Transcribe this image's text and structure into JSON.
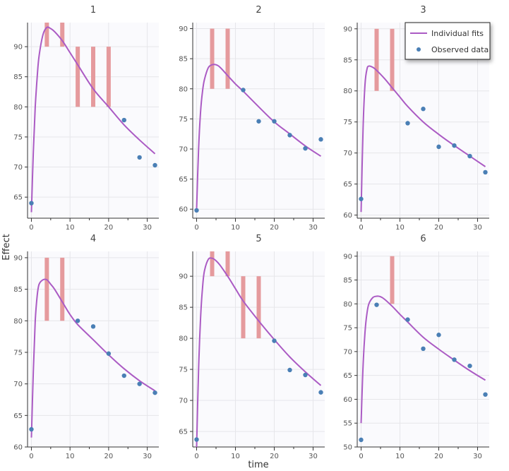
{
  "colors": {
    "fit_line": "#ab5bc4",
    "observed": "#4a7fb5",
    "dose_bar": "#e59a9d",
    "plot_bg": "#fafafd",
    "grid": "#e6e6ea"
  },
  "chart_data": {
    "type": "line",
    "xlabel": "time",
    "ylabel": "Effect",
    "legend": {
      "position": "top-right",
      "entries": [
        {
          "name": "Individual fits",
          "kind": "line"
        },
        {
          "name": "Observed data",
          "kind": "point"
        }
      ]
    },
    "panels": [
      {
        "title": "1",
        "xlim": [
          -1,
          33
        ],
        "ylim": [
          61.5,
          94
        ],
        "xticks": [
          0,
          10,
          20,
          30
        ],
        "yticks": [
          65,
          70,
          75,
          80,
          85,
          90
        ],
        "dose_bars": [
          [
            4,
            90,
            94
          ],
          [
            8,
            90,
            94
          ],
          [
            12,
            80,
            90
          ],
          [
            16,
            80,
            90
          ],
          [
            20,
            80,
            90
          ]
        ],
        "fit": [
          [
            0,
            62.5
          ],
          [
            0.5,
            72.5
          ],
          [
            1,
            80
          ],
          [
            1.5,
            85
          ],
          [
            2,
            88.5
          ],
          [
            3,
            92
          ],
          [
            4,
            93.2
          ],
          [
            5,
            93
          ],
          [
            6,
            92.5
          ],
          [
            8,
            91
          ],
          [
            10,
            89
          ],
          [
            12,
            87
          ],
          [
            16,
            83
          ],
          [
            20,
            80
          ],
          [
            24,
            77
          ],
          [
            28,
            74.5
          ],
          [
            32,
            72.2
          ]
        ],
        "observed": [
          [
            0,
            64
          ],
          [
            24,
            77.8
          ],
          [
            28,
            71.6
          ],
          [
            32,
            70.3
          ]
        ]
      },
      {
        "title": "2",
        "xlim": [
          -1,
          33
        ],
        "ylim": [
          58.5,
          91
        ],
        "xticks": [
          0,
          10,
          20,
          30
        ],
        "yticks": [
          60,
          65,
          70,
          75,
          80,
          85,
          90
        ],
        "dose_bars": [
          [
            4,
            80,
            90
          ],
          [
            8,
            80,
            90
          ]
        ],
        "fit": [
          [
            0,
            60
          ],
          [
            0.5,
            70
          ],
          [
            1,
            76
          ],
          [
            1.5,
            79.5
          ],
          [
            2,
            81.5
          ],
          [
            3,
            83.5
          ],
          [
            4,
            84
          ],
          [
            5,
            84
          ],
          [
            6,
            83.6
          ],
          [
            8,
            82.2
          ],
          [
            10,
            80.8
          ],
          [
            12,
            79.6
          ],
          [
            16,
            77
          ],
          [
            20,
            74.5
          ],
          [
            24,
            72.5
          ],
          [
            28,
            70.5
          ],
          [
            32,
            68.8
          ]
        ],
        "observed": [
          [
            0,
            59.8
          ],
          [
            12,
            79.8
          ],
          [
            16,
            74.6
          ],
          [
            20,
            74.6
          ],
          [
            24,
            72.3
          ],
          [
            28,
            70.1
          ],
          [
            32,
            71.6
          ]
        ]
      },
      {
        "title": "3",
        "xlim": [
          -1,
          33
        ],
        "ylim": [
          59.5,
          91
        ],
        "xticks": [
          0,
          10,
          20,
          30
        ],
        "yticks": [
          60,
          65,
          70,
          75,
          80,
          85,
          90
        ],
        "dose_bars": [
          [
            4,
            80,
            90
          ],
          [
            8,
            80,
            90
          ]
        ],
        "fit": [
          [
            0,
            60.5
          ],
          [
            0.5,
            74
          ],
          [
            1,
            81
          ],
          [
            1.5,
            83.5
          ],
          [
            2,
            84
          ],
          [
            3,
            83.8
          ],
          [
            4,
            83.3
          ],
          [
            6,
            82
          ],
          [
            8,
            80.5
          ],
          [
            10,
            79
          ],
          [
            12,
            77.5
          ],
          [
            16,
            75
          ],
          [
            20,
            73
          ],
          [
            24,
            71.2
          ],
          [
            28,
            69.5
          ],
          [
            32,
            67.8
          ]
        ],
        "observed": [
          [
            0,
            62.6
          ],
          [
            12,
            74.8
          ],
          [
            16,
            77.1
          ],
          [
            20,
            71
          ],
          [
            24,
            71.2
          ],
          [
            28,
            69.5
          ],
          [
            32,
            66.9
          ]
        ]
      },
      {
        "title": "4",
        "xlim": [
          -1,
          33
        ],
        "ylim": [
          60,
          91
        ],
        "xticks": [
          0,
          10,
          20,
          30
        ],
        "yticks": [
          60,
          65,
          70,
          75,
          80,
          85,
          90
        ],
        "dose_bars": [
          [
            4,
            80,
            90
          ],
          [
            8,
            80,
            90
          ]
        ],
        "fit": [
          [
            0,
            61.5
          ],
          [
            0.5,
            72
          ],
          [
            1,
            80
          ],
          [
            1.5,
            84
          ],
          [
            2,
            85.8
          ],
          [
            3,
            86.5
          ],
          [
            4,
            86.5
          ],
          [
            5,
            85.8
          ],
          [
            6,
            85
          ],
          [
            8,
            83
          ],
          [
            10,
            81
          ],
          [
            12,
            79.4
          ],
          [
            16,
            77
          ],
          [
            20,
            74.6
          ],
          [
            24,
            72.4
          ],
          [
            28,
            70.5
          ],
          [
            32,
            68.9
          ]
        ],
        "observed": [
          [
            0,
            62.8
          ],
          [
            12,
            80
          ],
          [
            16,
            79.1
          ],
          [
            20,
            74.8
          ],
          [
            24,
            71.3
          ],
          [
            28,
            70
          ],
          [
            32,
            68.6
          ]
        ]
      },
      {
        "title": "5",
        "xlim": [
          -1,
          33
        ],
        "ylim": [
          62.5,
          94
        ],
        "xticks": [
          0,
          10,
          20,
          30
        ],
        "yticks": [
          65,
          70,
          75,
          80,
          85,
          90
        ],
        "dose_bars": [
          [
            4,
            90,
            94
          ],
          [
            8,
            90,
            94
          ],
          [
            12,
            80,
            90
          ],
          [
            16,
            80,
            90
          ]
        ],
        "fit": [
          [
            0,
            62.5
          ],
          [
            0.5,
            75
          ],
          [
            1,
            83
          ],
          [
            1.5,
            88
          ],
          [
            2,
            90.8
          ],
          [
            3,
            92.7
          ],
          [
            4,
            92.9
          ],
          [
            5,
            92.5
          ],
          [
            6,
            91.8
          ],
          [
            8,
            90
          ],
          [
            10,
            88
          ],
          [
            12,
            86
          ],
          [
            16,
            82.8
          ],
          [
            20,
            79.8
          ],
          [
            24,
            77
          ],
          [
            28,
            74.6
          ],
          [
            32,
            72.4
          ]
        ],
        "observed": [
          [
            0,
            63.7
          ],
          [
            20,
            79.6
          ],
          [
            24,
            74.9
          ],
          [
            28,
            74.1
          ],
          [
            32,
            71.3
          ]
        ]
      },
      {
        "title": "6",
        "xlim": [
          -1,
          33
        ],
        "ylim": [
          50,
          91
        ],
        "xticks": [
          0,
          10,
          20,
          30
        ],
        "yticks": [
          50,
          55,
          60,
          65,
          70,
          75,
          80,
          85,
          90
        ],
        "dose_bars": [
          [
            8,
            80,
            90
          ]
        ],
        "fit": [
          [
            0,
            55
          ],
          [
            0.5,
            67
          ],
          [
            1,
            74
          ],
          [
            1.5,
            78
          ],
          [
            2,
            80
          ],
          [
            3,
            81.3
          ],
          [
            4,
            81.6
          ],
          [
            5,
            81.5
          ],
          [
            6,
            81
          ],
          [
            8,
            79.5
          ],
          [
            10,
            77.8
          ],
          [
            12,
            76.2
          ],
          [
            16,
            73
          ],
          [
            20,
            70.5
          ],
          [
            24,
            68.2
          ],
          [
            28,
            66
          ],
          [
            32,
            64
          ]
        ],
        "observed": [
          [
            0,
            51.5
          ],
          [
            4,
            79.8
          ],
          [
            12,
            76.7
          ],
          [
            16,
            70.6
          ],
          [
            20,
            73.5
          ],
          [
            24,
            68.3
          ],
          [
            28,
            67
          ],
          [
            32,
            61
          ]
        ]
      }
    ]
  }
}
